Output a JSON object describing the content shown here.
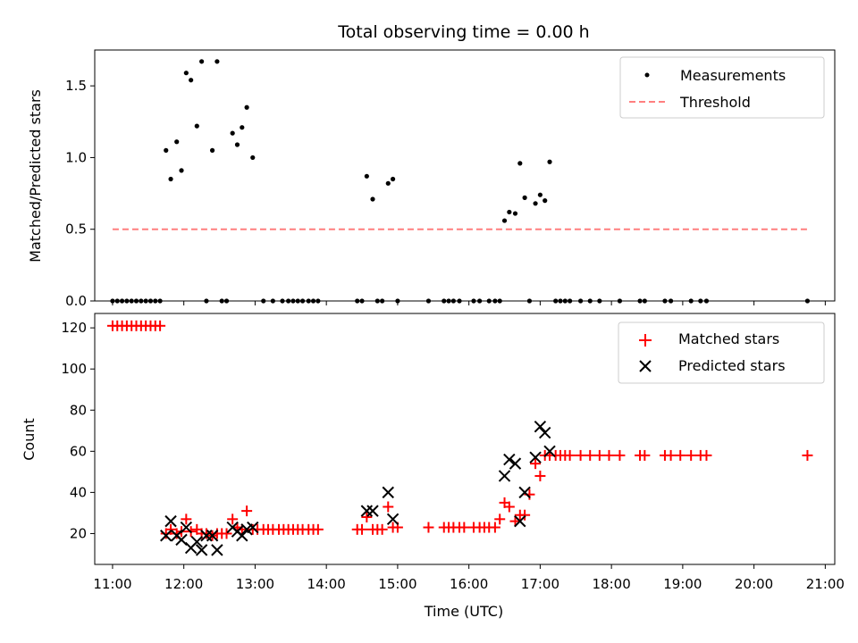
{
  "chart_data": [
    {
      "type": "scatter",
      "title": "Total observing time = 0.00 h",
      "ylabel": "Matched/Predicted stars",
      "xlabel": "",
      "xlim": [
        "10:45",
        "21:08"
      ],
      "ylim": [
        0,
        1.75
      ],
      "yticks": [
        0.0,
        0.5,
        1.0,
        1.5
      ],
      "legend": "top-right",
      "colors": {
        "measurements": "#000000",
        "threshold": "#ff7f7f"
      },
      "series": [
        {
          "name": "Measurements",
          "marker": "dot",
          "points": [
            [
              "11:00",
              0
            ],
            [
              "11:04",
              0
            ],
            [
              "11:08",
              0
            ],
            [
              "11:12",
              0
            ],
            [
              "11:16",
              0
            ],
            [
              "11:20",
              0
            ],
            [
              "11:24",
              0
            ],
            [
              "11:28",
              0
            ],
            [
              "11:32",
              0
            ],
            [
              "11:36",
              0
            ],
            [
              "11:40",
              0
            ],
            [
              "11:45",
              1.05
            ],
            [
              "11:49",
              0.85
            ],
            [
              "11:54",
              1.11
            ],
            [
              "11:58",
              0.91
            ],
            [
              "12:02",
              1.59
            ],
            [
              "12:06",
              1.54
            ],
            [
              "12:11",
              1.22
            ],
            [
              "12:15",
              1.67
            ],
            [
              "12:19",
              0
            ],
            [
              "12:24",
              1.05
            ],
            [
              "12:28",
              1.67
            ],
            [
              "12:32",
              0
            ],
            [
              "12:36",
              0
            ],
            [
              "12:41",
              1.17
            ],
            [
              "12:45",
              1.09
            ],
            [
              "12:49",
              1.21
            ],
            [
              "12:53",
              1.35
            ],
            [
              "12:58",
              1.0
            ],
            [
              "13:07",
              0
            ],
            [
              "13:15",
              0
            ],
            [
              "13:23",
              0
            ],
            [
              "13:28",
              0
            ],
            [
              "13:32",
              0
            ],
            [
              "13:36",
              0
            ],
            [
              "13:40",
              0
            ],
            [
              "13:45",
              0
            ],
            [
              "13:49",
              0
            ],
            [
              "13:53",
              0
            ],
            [
              "14:26",
              0
            ],
            [
              "14:30",
              0
            ],
            [
              "14:34",
              0.87
            ],
            [
              "14:39",
              0.71
            ],
            [
              "14:43",
              0
            ],
            [
              "14:47",
              0
            ],
            [
              "14:52",
              0.82
            ],
            [
              "14:56",
              0.85
            ],
            [
              "15:00",
              0
            ],
            [
              "15:26",
              0
            ],
            [
              "15:39",
              0
            ],
            [
              "15:43",
              0
            ],
            [
              "15:47",
              0
            ],
            [
              "15:52",
              0
            ],
            [
              "16:04",
              0
            ],
            [
              "16:09",
              0
            ],
            [
              "16:17",
              0
            ],
            [
              "16:22",
              0
            ],
            [
              "16:26",
              0
            ],
            [
              "16:30",
              0.56
            ],
            [
              "16:34",
              0.62
            ],
            [
              "16:39",
              0.61
            ],
            [
              "16:43",
              0.96
            ],
            [
              "16:47",
              0.72
            ],
            [
              "16:51",
              0
            ],
            [
              "16:56",
              0.68
            ],
            [
              "17:00",
              0.74
            ],
            [
              "17:04",
              0.7
            ],
            [
              "17:08",
              0.97
            ],
            [
              "17:13",
              0
            ],
            [
              "17:17",
              0
            ],
            [
              "17:21",
              0
            ],
            [
              "17:25",
              0
            ],
            [
              "17:34",
              0
            ],
            [
              "17:42",
              0
            ],
            [
              "17:50",
              0
            ],
            [
              "18:07",
              0
            ],
            [
              "18:24",
              0
            ],
            [
              "18:28",
              0
            ],
            [
              "18:45",
              0
            ],
            [
              "18:50",
              0
            ],
            [
              "19:07",
              0
            ],
            [
              "19:15",
              0
            ],
            [
              "19:20",
              0
            ],
            [
              "20:45",
              0
            ]
          ]
        },
        {
          "name": "Threshold",
          "style": "dashed-line",
          "points": [
            [
              "11:00",
              0.5
            ],
            [
              "20:45",
              0.5
            ]
          ]
        }
      ]
    },
    {
      "type": "scatter",
      "title": "",
      "xlabel": "Time (UTC)",
      "ylabel": "Count",
      "xlim": [
        "10:45",
        "21:08"
      ],
      "ylim": [
        5,
        127
      ],
      "xticks": [
        "11:00",
        "12:00",
        "13:00",
        "14:00",
        "15:00",
        "16:00",
        "17:00",
        "18:00",
        "19:00",
        "20:00",
        "21:00"
      ],
      "yticks": [
        20,
        40,
        60,
        80,
        100,
        120
      ],
      "legend": "top-right",
      "colors": {
        "matched": "#ff0000",
        "predicted": "#000000"
      },
      "series": [
        {
          "name": "Matched stars",
          "marker": "plus",
          "points": [
            [
              "11:00",
              121
            ],
            [
              "11:04",
              121
            ],
            [
              "11:08",
              121
            ],
            [
              "11:12",
              121
            ],
            [
              "11:16",
              121
            ],
            [
              "11:20",
              121
            ],
            [
              "11:24",
              121
            ],
            [
              "11:28",
              121
            ],
            [
              "11:32",
              121
            ],
            [
              "11:36",
              121
            ],
            [
              "11:40",
              121
            ],
            [
              "11:45",
              20
            ],
            [
              "11:49",
              22
            ],
            [
              "11:54",
              20
            ],
            [
              "11:58",
              21
            ],
            [
              "12:02",
              27
            ],
            [
              "12:06",
              21
            ],
            [
              "12:11",
              22
            ],
            [
              "12:15",
              20
            ],
            [
              "12:19",
              20
            ],
            [
              "12:24",
              19
            ],
            [
              "12:28",
              20
            ],
            [
              "12:32",
              20
            ],
            [
              "12:36",
              20
            ],
            [
              "12:41",
              27
            ],
            [
              "12:45",
              23
            ],
            [
              "12:49",
              22
            ],
            [
              "12:53",
              31
            ],
            [
              "12:58",
              22
            ],
            [
              "13:02",
              22
            ],
            [
              "13:07",
              22
            ],
            [
              "13:11",
              22
            ],
            [
              "13:15",
              22
            ],
            [
              "13:20",
              22
            ],
            [
              "13:24",
              22
            ],
            [
              "13:28",
              22
            ],
            [
              "13:32",
              22
            ],
            [
              "13:36",
              22
            ],
            [
              "13:40",
              22
            ],
            [
              "13:45",
              22
            ],
            [
              "13:49",
              22
            ],
            [
              "13:53",
              22
            ],
            [
              "14:26",
              22
            ],
            [
              "14:30",
              22
            ],
            [
              "14:34",
              28
            ],
            [
              "14:39",
              22
            ],
            [
              "14:43",
              22
            ],
            [
              "14:47",
              22
            ],
            [
              "14:52",
              33
            ],
            [
              "14:56",
              23
            ],
            [
              "15:00",
              23
            ],
            [
              "15:26",
              23
            ],
            [
              "15:39",
              23
            ],
            [
              "15:43",
              23
            ],
            [
              "15:47",
              23
            ],
            [
              "15:52",
              23
            ],
            [
              "15:56",
              23
            ],
            [
              "16:04",
              23
            ],
            [
              "16:09",
              23
            ],
            [
              "16:13",
              23
            ],
            [
              "16:17",
              23
            ],
            [
              "16:22",
              23
            ],
            [
              "16:26",
              27
            ],
            [
              "16:30",
              35
            ],
            [
              "16:34",
              33
            ],
            [
              "16:39",
              26
            ],
            [
              "16:43",
              29
            ],
            [
              "16:47",
              29
            ],
            [
              "16:51",
              39
            ],
            [
              "16:56",
              54
            ],
            [
              "17:00",
              48
            ],
            [
              "17:04",
              58
            ],
            [
              "17:08",
              58
            ],
            [
              "17:13",
              58
            ],
            [
              "17:17",
              58
            ],
            [
              "17:21",
              58
            ],
            [
              "17:25",
              58
            ],
            [
              "17:34",
              58
            ],
            [
              "17:42",
              58
            ],
            [
              "17:50",
              58
            ],
            [
              "17:58",
              58
            ],
            [
              "18:07",
              58
            ],
            [
              "18:24",
              58
            ],
            [
              "18:28",
              58
            ],
            [
              "18:45",
              58
            ],
            [
              "18:50",
              58
            ],
            [
              "18:58",
              58
            ],
            [
              "19:07",
              58
            ],
            [
              "19:15",
              58
            ],
            [
              "19:20",
              58
            ],
            [
              "20:45",
              58
            ]
          ]
        },
        {
          "name": "Predicted stars",
          "marker": "x",
          "points": [
            [
              "11:45",
              19
            ],
            [
              "11:49",
              26
            ],
            [
              "11:54",
              19
            ],
            [
              "11:58",
              17
            ],
            [
              "12:02",
              23
            ],
            [
              "12:06",
              13
            ],
            [
              "12:11",
              16
            ],
            [
              "12:15",
              12
            ],
            [
              "12:19",
              19
            ],
            [
              "12:24",
              19
            ],
            [
              "12:28",
              12
            ],
            [
              "12:41",
              23
            ],
            [
              "12:45",
              21
            ],
            [
              "12:49",
              19
            ],
            [
              "12:53",
              22
            ],
            [
              "12:58",
              23
            ],
            [
              "14:34",
              31
            ],
            [
              "14:39",
              31
            ],
            [
              "14:52",
              40
            ],
            [
              "14:56",
              27
            ],
            [
              "16:30",
              48
            ],
            [
              "16:34",
              56
            ],
            [
              "16:39",
              54
            ],
            [
              "16:43",
              26
            ],
            [
              "16:47",
              40
            ],
            [
              "16:56",
              57
            ],
            [
              "17:00",
              72
            ],
            [
              "17:04",
              69
            ],
            [
              "17:08",
              60
            ]
          ]
        }
      ]
    }
  ]
}
